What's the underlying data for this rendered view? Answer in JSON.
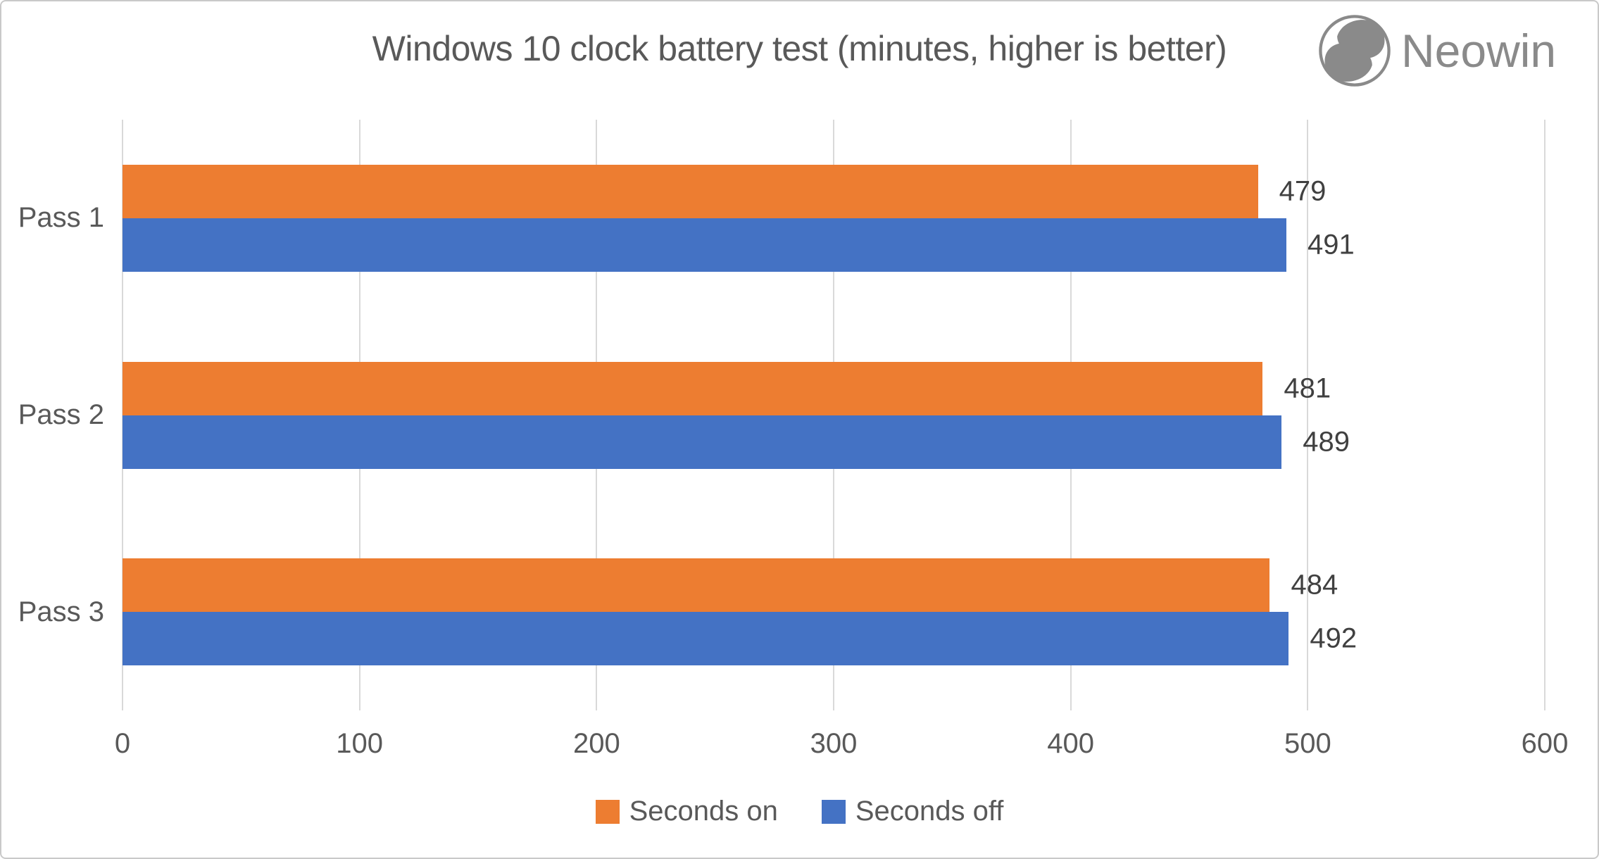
{
  "title": "Windows 10 clock battery test (minutes, higher is better)",
  "logo": {
    "text": "Neowin"
  },
  "colors": {
    "background": "#ffffff",
    "frame_border": "#c9c9c9",
    "gridline": "#d9d9d9",
    "title_text": "#595959",
    "axis_text": "#595959",
    "category_text": "#595959",
    "data_label_text": "#404040",
    "legend_text": "#595959",
    "logo_gray": "#8a8a8a",
    "series_on": "#ED7D31",
    "series_off": "#4472C4"
  },
  "chart_data": {
    "type": "bar",
    "orientation": "horizontal",
    "title": "Windows 10 clock battery test (minutes, higher is better)",
    "categories": [
      "Pass 1",
      "Pass 2",
      "Pass 3"
    ],
    "series": [
      {
        "name": "Seconds on",
        "color": "#ED7D31",
        "values": [
          479,
          481,
          484
        ]
      },
      {
        "name": "Seconds off",
        "color": "#4472C4",
        "values": [
          491,
          489,
          492
        ]
      }
    ],
    "xlim": [
      0,
      600
    ],
    "x_ticks": [
      0,
      100,
      200,
      300,
      400,
      500,
      600
    ],
    "grid": "vertical-only",
    "legend_position": "bottom",
    "data_labels": "outside-end"
  }
}
